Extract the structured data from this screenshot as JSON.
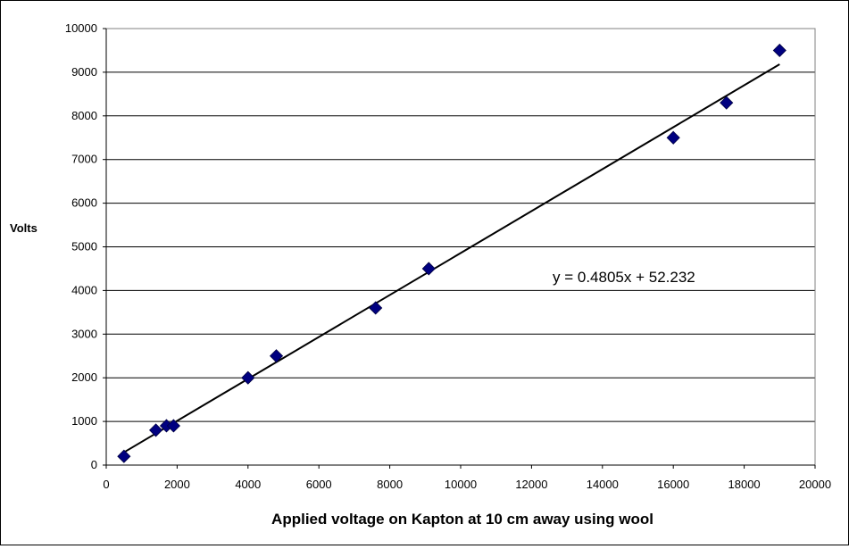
{
  "chart_data": {
    "type": "scatter",
    "title": "",
    "xlabel": "Applied voltage on Kapton at 10 cm away using wool",
    "ylabel": "Volts",
    "xlim": [
      0,
      20000
    ],
    "ylim": [
      0,
      10000
    ],
    "xticks": [
      "0",
      "2000",
      "4000",
      "6000",
      "8000",
      "10000",
      "12000",
      "14000",
      "16000",
      "18000",
      "20000"
    ],
    "yticks": [
      "0",
      "1000",
      "2000",
      "3000",
      "4000",
      "5000",
      "6000",
      "7000",
      "8000",
      "9000",
      "10000"
    ],
    "grid": "horizontal",
    "legend": "none",
    "marker": "diamond",
    "marker_color": "#000080",
    "points": [
      {
        "x": 500,
        "y": 200
      },
      {
        "x": 1400,
        "y": 800
      },
      {
        "x": 1700,
        "y": 900
      },
      {
        "x": 1900,
        "y": 900
      },
      {
        "x": 4000,
        "y": 2000
      },
      {
        "x": 4800,
        "y": 2500
      },
      {
        "x": 7600,
        "y": 3600
      },
      {
        "x": 9100,
        "y": 4500
      },
      {
        "x": 16000,
        "y": 7500
      },
      {
        "x": 17500,
        "y": 8300
      },
      {
        "x": 19000,
        "y": 9500
      }
    ],
    "trendline": {
      "type": "linear",
      "slope": 0.4805,
      "intercept": 52.232,
      "x_range": [
        500,
        19000
      ],
      "color": "#000000",
      "equation_label": "y = 0.4805x + 52.232"
    }
  }
}
